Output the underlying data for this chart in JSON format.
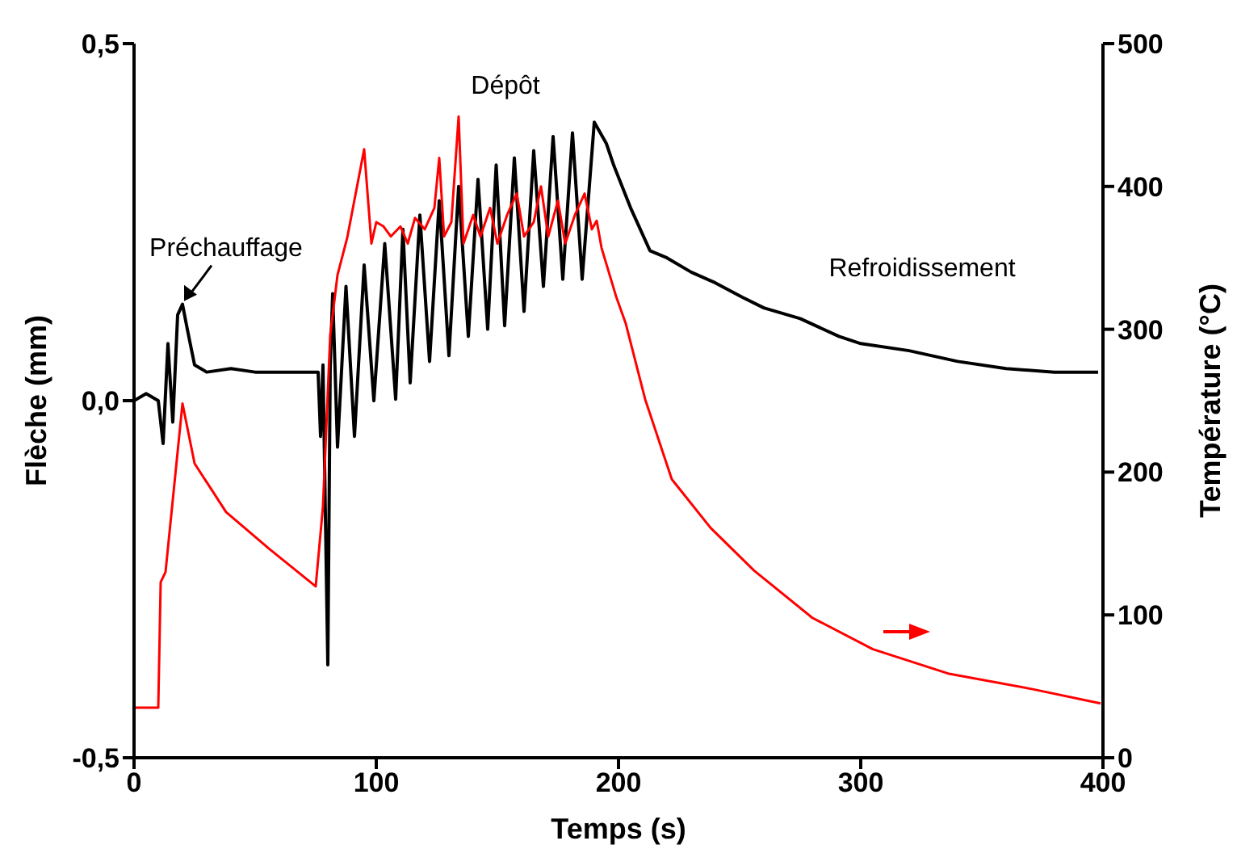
{
  "chart_data": {
    "type": "line",
    "xlabel": "Temps (s)",
    "ylabel": "Flèche (mm)",
    "y2label": "Température (°C)",
    "xlim": [
      0,
      400
    ],
    "xticks": [
      0,
      100,
      200,
      300,
      400
    ],
    "ylim": [
      -0.5,
      0.5
    ],
    "yticks": [
      {
        "value": -0.5,
        "label": "-0,5"
      },
      {
        "value": 0,
        "label": "0,0"
      },
      {
        "value": 0.5,
        "label": "0,5"
      }
    ],
    "y2lim": [
      0,
      500
    ],
    "y2ticks": [
      0,
      100,
      200,
      300,
      400,
      500
    ],
    "grid": false,
    "legend": false,
    "marker": "none",
    "line_style": "solid",
    "annotations": [
      {
        "text": "Préchauffage",
        "x": 20,
        "y": 0.135
      },
      "Dépôt",
      "Refroidissement"
    ],
    "series": [
      {
        "color": "#000000",
        "x": [
          0,
          5,
          10,
          12,
          14,
          16,
          18,
          20,
          22,
          25,
          30,
          40,
          50,
          60,
          70,
          76,
          77,
          78,
          80,
          81,
          82,
          84,
          87.5,
          91,
          95,
          99,
          103.5,
          108,
          111,
          114,
          118,
          122,
          126,
          130,
          134,
          138,
          142,
          146,
          149.5,
          153,
          157,
          161,
          165,
          169,
          173,
          177,
          181,
          185,
          190,
          195,
          198,
          205,
          213,
          220,
          230,
          240,
          251,
          260,
          275,
          291,
          300,
          320,
          340,
          360,
          380,
          398
        ],
        "values": [
          0,
          0.01,
          0,
          -0.06,
          0.08,
          -0.03,
          0.12,
          0.135,
          0.1,
          0.05,
          0.04,
          0.045,
          0.04,
          0.04,
          0.04,
          0.04,
          -0.05,
          0.05,
          -0.37,
          0.05,
          0.15,
          -0.065,
          0.16,
          -0.05,
          0.19,
          0,
          0.22,
          0.002,
          0.24,
          0.025,
          0.26,
          0.055,
          0.28,
          0.063,
          0.3,
          0.09,
          0.31,
          0.1,
          0.33,
          0.105,
          0.34,
          0.125,
          0.35,
          0.16,
          0.37,
          0.17,
          0.375,
          0.17,
          0.39,
          0.36,
          0.33,
          0.27,
          0.21,
          0.2,
          0.18,
          0.165,
          0.145,
          0.13,
          0.115,
          0.09,
          0.08,
          0.07,
          0.055,
          0.045,
          0.04,
          0.04
        ]
      },
      {
        "color": "#ff0000",
        "axis": "y2",
        "x": [
          0,
          10,
          11,
          13,
          20,
          25,
          38,
          56,
          75,
          78,
          81,
          84,
          88,
          95,
          98,
          100,
          103,
          106,
          110,
          113,
          116,
          120,
          124,
          126,
          128,
          131,
          134,
          136,
          140,
          143,
          147,
          150,
          154,
          158,
          161,
          165,
          168,
          171,
          175,
          178,
          182,
          186,
          189,
          191,
          193,
          199,
          203,
          211,
          222,
          238,
          256,
          280,
          305,
          336,
          371,
          399
        ],
        "values": [
          35,
          35,
          123,
          130,
          248,
          206,
          172,
          146,
          120,
          176,
          296,
          338,
          364,
          426,
          360,
          375,
          372,
          365,
          372,
          360,
          378,
          370,
          385,
          420,
          365,
          375,
          449,
          360,
          380,
          365,
          385,
          360,
          380,
          395,
          365,
          375,
          400,
          365,
          390,
          360,
          380,
          395,
          370,
          376,
          357,
          323,
          304,
          251,
          195,
          161,
          131,
          98,
          76,
          59,
          48,
          38
        ]
      }
    ]
  }
}
